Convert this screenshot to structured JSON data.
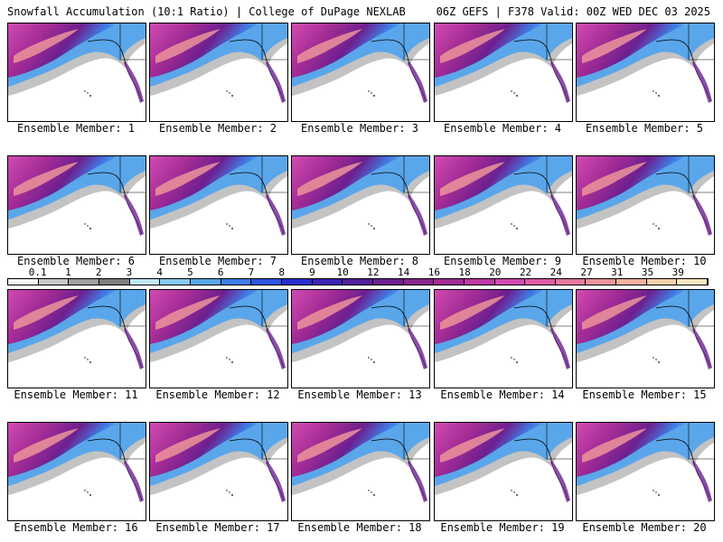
{
  "header": {
    "left_title": "Snowfall Accumulation (10:1 Ratio) | College of DuPage NEXLAB",
    "right_title": "06Z GEFS | F378 Valid: 00Z WED DEC 03 2025"
  },
  "colorbar": {
    "labels": [
      "0.1",
      "1",
      "2",
      "3",
      "4",
      "5",
      "6",
      "7",
      "8",
      "9",
      "10",
      "12",
      "14",
      "16",
      "18",
      "20",
      "22",
      "24",
      "27",
      "31",
      "35",
      "39"
    ],
    "colors": [
      "#f4f4f4",
      "#c8c8c8",
      "#a0a0a0",
      "#7e7e7e",
      "#bfe8f5",
      "#86c9ef",
      "#5aa6ea",
      "#3f7ee6",
      "#2d55df",
      "#2a2fd0",
      "#3c23b4",
      "#53209b",
      "#6c2090",
      "#87258d",
      "#a22b95",
      "#be3aa5",
      "#d14bb1",
      "#de5ea6",
      "#e5789e",
      "#ec949a",
      "#f2b19f",
      "#f7cfa9",
      "#fbe6bf"
    ]
  },
  "panels": [
    {
      "label": "Ensemble Member: 1"
    },
    {
      "label": "Ensemble Member: 2"
    },
    {
      "label": "Ensemble Member: 3"
    },
    {
      "label": "Ensemble Member: 4"
    },
    {
      "label": "Ensemble Member: 5"
    },
    {
      "label": "Ensemble Member: 6"
    },
    {
      "label": "Ensemble Member: 7"
    },
    {
      "label": "Ensemble Member: 8"
    },
    {
      "label": "Ensemble Member: 9"
    },
    {
      "label": "Ensemble Member: 10"
    },
    {
      "label": "Ensemble Member: 11"
    },
    {
      "label": "Ensemble Member: 12"
    },
    {
      "label": "Ensemble Member: 13"
    },
    {
      "label": "Ensemble Member: 14"
    },
    {
      "label": "Ensemble Member: 15"
    },
    {
      "label": "Ensemble Member: 16"
    },
    {
      "label": "Ensemble Member: 17"
    },
    {
      "label": "Ensemble Member: 18"
    },
    {
      "label": "Ensemble Member: 19"
    },
    {
      "label": "Ensemble Member: 20"
    }
  ]
}
